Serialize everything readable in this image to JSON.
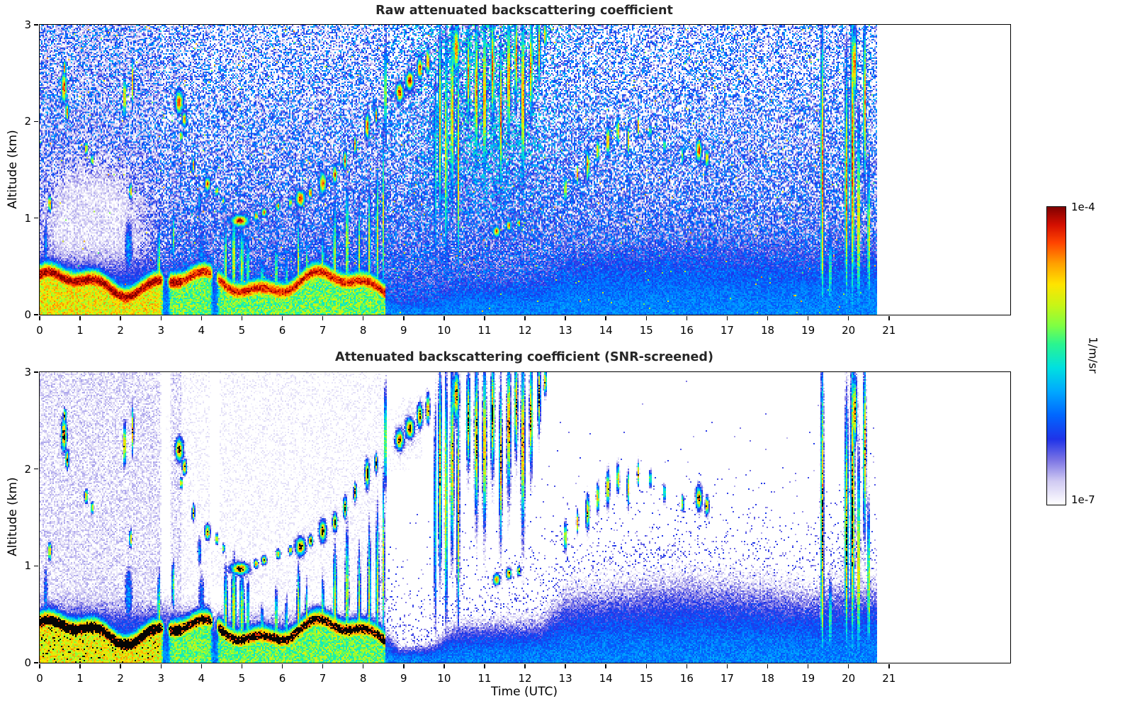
{
  "chart_data": {
    "type": "heatmap",
    "panels": [
      {
        "title": "Raw attenuated backscattering coefficient",
        "screened": false,
        "seed": 1
      },
      {
        "title": "Attenuated backscattering coefficient (SNR-screened)",
        "screened": true,
        "seed": 101
      }
    ],
    "x": {
      "label": "Time (UTC)",
      "unit": "hours",
      "range": [
        0,
        24
      ],
      "data_max": 20.7,
      "ticks": [
        0,
        1,
        2,
        3,
        4,
        5,
        6,
        7,
        8,
        9,
        10,
        11,
        12,
        13,
        14,
        15,
        16,
        17,
        18,
        19,
        20,
        21
      ]
    },
    "y": {
      "label": "Altitude (km)",
      "range": [
        0,
        3
      ],
      "ticks": [
        0,
        1,
        2,
        3
      ]
    },
    "colorbar": {
      "max_label": "1e-4",
      "min_label": "1e-7",
      "unit": "1/m/sr",
      "scale": "log"
    },
    "colormap_stops": [
      [
        0.0,
        "#ffffff"
      ],
      [
        0.08,
        "#cfc9f2"
      ],
      [
        0.15,
        "#7b74e4"
      ],
      [
        0.22,
        "#1f33e8"
      ],
      [
        0.3,
        "#0066ff"
      ],
      [
        0.38,
        "#00a8ff"
      ],
      [
        0.46,
        "#00e0e0"
      ],
      [
        0.54,
        "#2bf58f"
      ],
      [
        0.6,
        "#7dff44"
      ],
      [
        0.67,
        "#c8f516"
      ],
      [
        0.74,
        "#ffe400"
      ],
      [
        0.81,
        "#ffa000"
      ],
      [
        0.88,
        "#ff4400"
      ],
      [
        0.94,
        "#d40f00"
      ],
      [
        1.0,
        "#800000"
      ]
    ],
    "value_range_log10": [
      -7,
      -4
    ],
    "aerosol_ribbon": {
      "t_start": 0,
      "t_end": 8.55,
      "z_base": 0.32,
      "amp1": 0.09,
      "amp2": 0.05,
      "thickness": 0.11,
      "v_strong": -4.0,
      "v_weak": -4.18
    },
    "boundary_layer_height": [
      [
        0,
        0.72
      ],
      [
        3,
        0.68
      ],
      [
        4.2,
        0.55
      ],
      [
        8.4,
        0.5
      ],
      [
        8.9,
        0.18
      ],
      [
        9.7,
        0.22
      ],
      [
        10.3,
        0.45
      ],
      [
        12.4,
        0.5
      ],
      [
        13,
        0.8
      ],
      [
        16,
        0.95
      ],
      [
        18.5,
        0.85
      ],
      [
        19.2,
        0.8
      ],
      [
        19.6,
        0.9
      ],
      [
        20.7,
        0.9
      ]
    ],
    "features_format": "[time_h, altitude_km, sigma_t_h, sigma_z_km, log10_beta_peak]",
    "features": [
      [
        0.25,
        1.15,
        0.05,
        0.1,
        -4.5
      ],
      [
        0.6,
        2.35,
        0.07,
        0.16,
        -4.15
      ],
      [
        0.68,
        2.1,
        0.05,
        0.1,
        -4.35
      ],
      [
        0.62,
        2.55,
        0.04,
        0.08,
        -4.4
      ],
      [
        1.15,
        1.72,
        0.05,
        0.08,
        -4.55
      ],
      [
        1.3,
        1.6,
        0.04,
        0.07,
        -4.6
      ],
      [
        2.1,
        2.25,
        0.04,
        0.22,
        -4.35
      ],
      [
        2.3,
        2.4,
        0.03,
        0.25,
        -4.45
      ],
      [
        2.25,
        1.28,
        0.04,
        0.1,
        -4.55
      ],
      [
        3.45,
        2.2,
        0.1,
        0.12,
        -4.2
      ],
      [
        3.58,
        2.02,
        0.06,
        0.08,
        -4.35
      ],
      [
        3.5,
        1.85,
        0.04,
        0.06,
        -4.5
      ],
      [
        3.8,
        1.55,
        0.04,
        0.09,
        -4.5
      ],
      [
        4.15,
        1.35,
        0.07,
        0.08,
        -4.3
      ],
      [
        4.38,
        1.28,
        0.04,
        0.06,
        -4.45
      ],
      [
        4.55,
        1.18,
        0.03,
        0.05,
        -4.5
      ],
      [
        4.95,
        0.97,
        0.22,
        0.06,
        -4.1
      ],
      [
        5.35,
        1.02,
        0.06,
        0.05,
        -4.45
      ],
      [
        5.55,
        1.06,
        0.07,
        0.05,
        -4.4
      ],
      [
        5.9,
        1.12,
        0.06,
        0.05,
        -4.45
      ],
      [
        6.2,
        1.16,
        0.05,
        0.05,
        -4.5
      ],
      [
        6.45,
        1.2,
        0.12,
        0.09,
        -4.2
      ],
      [
        6.7,
        1.26,
        0.06,
        0.06,
        -4.35
      ],
      [
        7.0,
        1.36,
        0.09,
        0.11,
        -4.25
      ],
      [
        7.3,
        1.45,
        0.06,
        0.1,
        -4.3
      ],
      [
        7.55,
        1.6,
        0.05,
        0.11,
        -4.3
      ],
      [
        7.8,
        1.76,
        0.04,
        0.1,
        -4.4
      ],
      [
        8.1,
        1.95,
        0.06,
        0.14,
        -4.25
      ],
      [
        8.32,
        2.06,
        0.04,
        0.1,
        -4.35
      ],
      [
        8.55,
        2.3,
        0.03,
        0.55,
        -4.45
      ],
      [
        8.9,
        2.3,
        0.1,
        0.1,
        -4.15
      ],
      [
        9.15,
        2.42,
        0.1,
        0.1,
        -4.1
      ],
      [
        9.4,
        2.55,
        0.07,
        0.12,
        -4.25
      ],
      [
        9.6,
        2.62,
        0.05,
        0.15,
        -4.35
      ],
      [
        9.78,
        1.5,
        0.04,
        1.6,
        -5.3
      ],
      [
        9.9,
        2.0,
        0.05,
        1.1,
        -4.6
      ],
      [
        10.05,
        1.7,
        0.04,
        1.4,
        -4.65
      ],
      [
        10.2,
        2.1,
        0.05,
        1.0,
        -4.55
      ],
      [
        10.35,
        1.6,
        0.04,
        1.3,
        -4.7
      ],
      [
        10.3,
        2.75,
        0.08,
        0.25,
        -4.3
      ],
      [
        10.6,
        2.5,
        0.05,
        0.5,
        -4.45
      ],
      [
        10.8,
        2.3,
        0.05,
        0.75,
        -4.35
      ],
      [
        11.0,
        2.25,
        0.05,
        0.85,
        -4.4
      ],
      [
        11.2,
        2.55,
        0.05,
        0.55,
        -4.3
      ],
      [
        11.4,
        2.05,
        0.04,
        0.8,
        -4.45
      ],
      [
        11.6,
        2.45,
        0.05,
        0.65,
        -4.3
      ],
      [
        11.78,
        2.65,
        0.04,
        0.45,
        -4.25
      ],
      [
        11.95,
        2.25,
        0.05,
        0.85,
        -4.3
      ],
      [
        12.15,
        2.55,
        0.04,
        0.55,
        -4.35
      ],
      [
        12.35,
        2.75,
        0.04,
        0.35,
        -4.4
      ],
      [
        12.5,
        2.9,
        0.04,
        0.15,
        -4.5
      ],
      [
        11.3,
        0.86,
        0.09,
        0.06,
        -4.35
      ],
      [
        11.6,
        0.92,
        0.07,
        0.06,
        -4.4
      ],
      [
        11.85,
        0.95,
        0.05,
        0.05,
        -4.5
      ],
      [
        13.0,
        1.3,
        0.04,
        0.15,
        -4.5
      ],
      [
        13.3,
        1.45,
        0.03,
        0.12,
        -4.55
      ],
      [
        13.55,
        1.55,
        0.05,
        0.18,
        -4.45
      ],
      [
        13.8,
        1.7,
        0.04,
        0.15,
        -4.5
      ],
      [
        14.05,
        1.8,
        0.05,
        0.18,
        -4.45
      ],
      [
        14.3,
        1.9,
        0.04,
        0.15,
        -4.5
      ],
      [
        14.55,
        1.8,
        0.03,
        0.18,
        -4.5
      ],
      [
        14.8,
        1.95,
        0.03,
        0.12,
        -4.55
      ],
      [
        15.1,
        1.9,
        0.03,
        0.1,
        -4.6
      ],
      [
        15.45,
        1.75,
        0.03,
        0.1,
        -4.6
      ],
      [
        15.9,
        1.65,
        0.03,
        0.1,
        -4.6
      ],
      [
        16.3,
        1.7,
        0.08,
        0.12,
        -4.3
      ],
      [
        16.5,
        1.62,
        0.05,
        0.1,
        -4.4
      ],
      [
        19.35,
        1.5,
        0.04,
        1.6,
        -4.35
      ],
      [
        19.35,
        0.7,
        0.05,
        0.8,
        -4.8
      ],
      [
        19.55,
        0.45,
        0.04,
        0.55,
        -5.0
      ],
      [
        19.95,
        1.3,
        0.05,
        1.4,
        -4.45
      ],
      [
        20.1,
        1.6,
        0.05,
        1.6,
        -4.25
      ],
      [
        20.25,
        1.0,
        0.04,
        1.1,
        -4.4
      ],
      [
        20.4,
        2.2,
        0.04,
        0.9,
        -4.45
      ],
      [
        20.5,
        0.8,
        0.04,
        0.9,
        -4.7
      ],
      [
        20.15,
        2.6,
        0.06,
        0.35,
        -4.3
      ],
      [
        2.95,
        0.5,
        0.05,
        0.55,
        -5.0
      ],
      [
        3.3,
        0.8,
        0.04,
        0.35,
        -5.1
      ],
      [
        4.6,
        0.5,
        0.06,
        0.6,
        -5.0
      ],
      [
        4.8,
        0.55,
        0.08,
        0.6,
        -4.9
      ],
      [
        5.0,
        0.5,
        0.08,
        0.55,
        -5.0
      ],
      [
        5.15,
        0.45,
        0.05,
        0.5,
        -5.1
      ],
      [
        5.5,
        0.3,
        0.05,
        0.35,
        -5.0
      ],
      [
        5.85,
        0.4,
        0.05,
        0.45,
        -5.0
      ],
      [
        6.1,
        0.35,
        0.04,
        0.4,
        -5.1
      ],
      [
        6.4,
        0.5,
        0.05,
        0.6,
        -4.9
      ],
      [
        6.6,
        0.4,
        0.04,
        0.5,
        -5.0
      ],
      [
        7.0,
        0.45,
        0.05,
        0.5,
        -5.0
      ],
      [
        7.3,
        0.6,
        0.06,
        0.7,
        -4.9
      ],
      [
        7.6,
        0.7,
        0.06,
        0.8,
        -4.9
      ],
      [
        7.9,
        0.6,
        0.05,
        0.7,
        -5.0
      ],
      [
        8.15,
        0.7,
        0.05,
        0.8,
        -4.9
      ],
      [
        8.35,
        0.8,
        0.05,
        0.9,
        -4.9
      ],
      [
        8.5,
        1.0,
        0.04,
        1.1,
        -5.0
      ],
      [
        4.0,
        0.6,
        0.15,
        0.6,
        -6.0
      ],
      [
        2.2,
        0.7,
        0.18,
        0.55,
        -5.9
      ],
      [
        0.15,
        0.7,
        0.1,
        0.6,
        -6.0
      ],
      [
        3.95,
        1.15,
        0.08,
        0.25,
        -5.8
      ]
    ]
  }
}
